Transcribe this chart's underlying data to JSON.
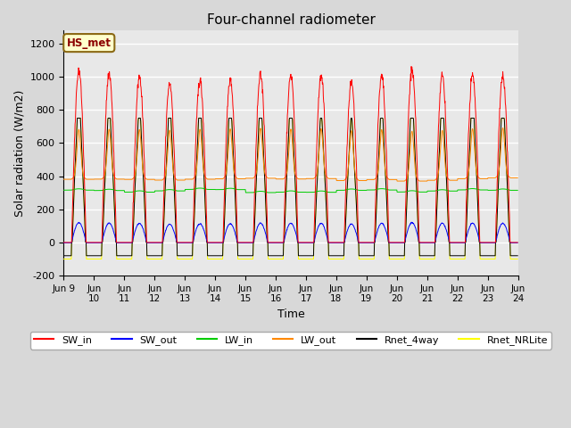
{
  "title": "Four-channel radiometer",
  "xlabel": "Time",
  "ylabel": "Solar radiation (W/m2)",
  "ylim": [
    -200,
    1280
  ],
  "yticks": [
    -200,
    0,
    200,
    400,
    600,
    800,
    1000,
    1200
  ],
  "xlim_start": 9.0,
  "xlim_end": 24.0,
  "xtick_positions": [
    9,
    10,
    11,
    12,
    13,
    14,
    15,
    16,
    17,
    18,
    19,
    20,
    21,
    22,
    23,
    24
  ],
  "colors": {
    "SW_in": "#ff0000",
    "SW_out": "#0000ff",
    "LW_in": "#00cc00",
    "LW_out": "#ff8800",
    "Rnet_4way": "#000000",
    "Rnet_NRLite": "#ffff00"
  },
  "annotation_text": "HS_met",
  "bg_color": "#e8e8e8",
  "grid_color": "#ffffff",
  "SW_in_peaks": [
    1040,
    1020,
    1000,
    960,
    980,
    990,
    1010,
    1010,
    1000,
    960,
    1000,
    1040,
    1010,
    1010,
    1000
  ],
  "LW_in_base": 305,
  "LW_out_base": 370,
  "Rnet_night": -80,
  "NRLite_night": -100,
  "Rnet_peaks": [
    720,
    660,
    650,
    665,
    680,
    690,
    690,
    700,
    610,
    590,
    660,
    700,
    700,
    710,
    700
  ],
  "fig_width": 6.4,
  "fig_height": 4.8,
  "dpi": 100
}
